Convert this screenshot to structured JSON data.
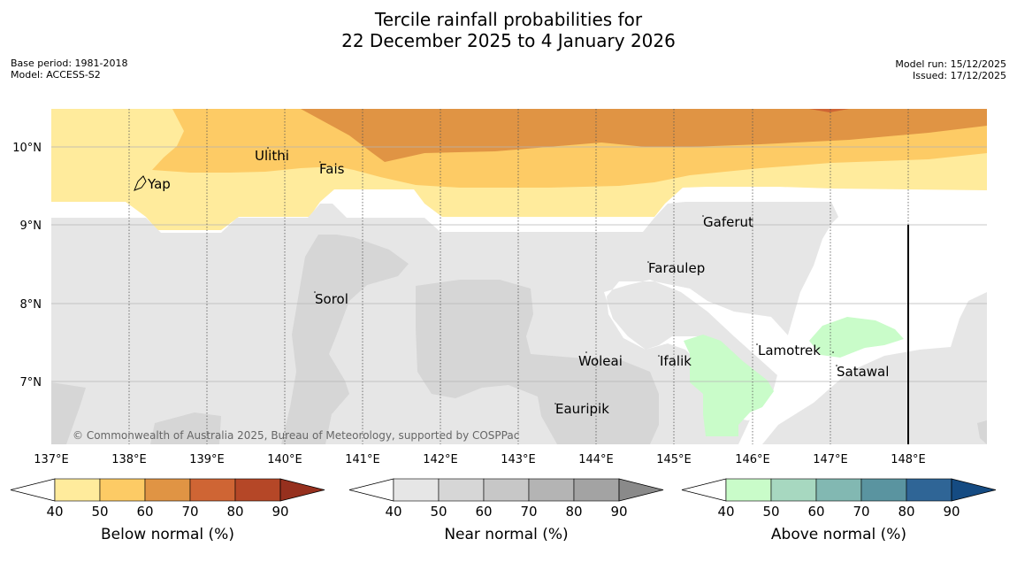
{
  "title": {
    "line1": "Tercile rainfall probabilities for",
    "line2": "22 December 2025 to 4 January 2026"
  },
  "meta": {
    "base_period": "Base period: 1981-2018",
    "model": "Model: ACCESS-S2",
    "model_run": "Model run: 15/12/2025",
    "issued": "Issued: 17/12/2025"
  },
  "map": {
    "copyright": "© Commonwealth of Australia 2025, Bureau of Meteorology, supported by COSPPac",
    "lon_labels": [
      "137°E",
      "138°E",
      "139°E",
      "140°E",
      "141°E",
      "142°E",
      "143°E",
      "144°E",
      "145°E",
      "146°E",
      "147°E",
      "148°E"
    ],
    "lat_labels": [
      "10°N",
      "9°N",
      "8°N",
      "7°N"
    ],
    "places": [
      {
        "name": "Yap",
        "label": "Yap"
      },
      {
        "name": "Ulithi",
        "label": "Ulithi"
      },
      {
        "name": "Fais",
        "label": "Fais"
      },
      {
        "name": "Gaferut",
        "label": "Gaferut"
      },
      {
        "name": "Faraulep",
        "label": "Faraulep"
      },
      {
        "name": "Sorol",
        "label": "Sorol"
      },
      {
        "name": "Woleai",
        "label": "Woleai"
      },
      {
        "name": "Ifalik",
        "label": "Ifalik"
      },
      {
        "name": "Lamotrek",
        "label": "Lamotrek"
      },
      {
        "name": "Satawal",
        "label": "Satawal"
      },
      {
        "name": "Eauripik",
        "label": "Eauripik"
      }
    ]
  },
  "colorbars": {
    "ticks": [
      "40",
      "50",
      "60",
      "70",
      "80",
      "90"
    ],
    "below": {
      "label": "Below normal (%)",
      "colors": [
        "#ffeb9c",
        "#fdcb65",
        "#e09444",
        "#cf6534",
        "#b54727",
        "#96301e"
      ]
    },
    "near": {
      "label": "Near normal (%)",
      "colors": [
        "#e6e6e6",
        "#d6d6d6",
        "#c7c7c7",
        "#b4b4b4",
        "#a3a3a3",
        "#8a8a8a"
      ]
    },
    "above": {
      "label": "Above normal (%)",
      "colors": [
        "#c9fcc9",
        "#a7d8c0",
        "#82b8b2",
        "#5a94a0",
        "#2f6596",
        "#154b82"
      ]
    }
  }
}
